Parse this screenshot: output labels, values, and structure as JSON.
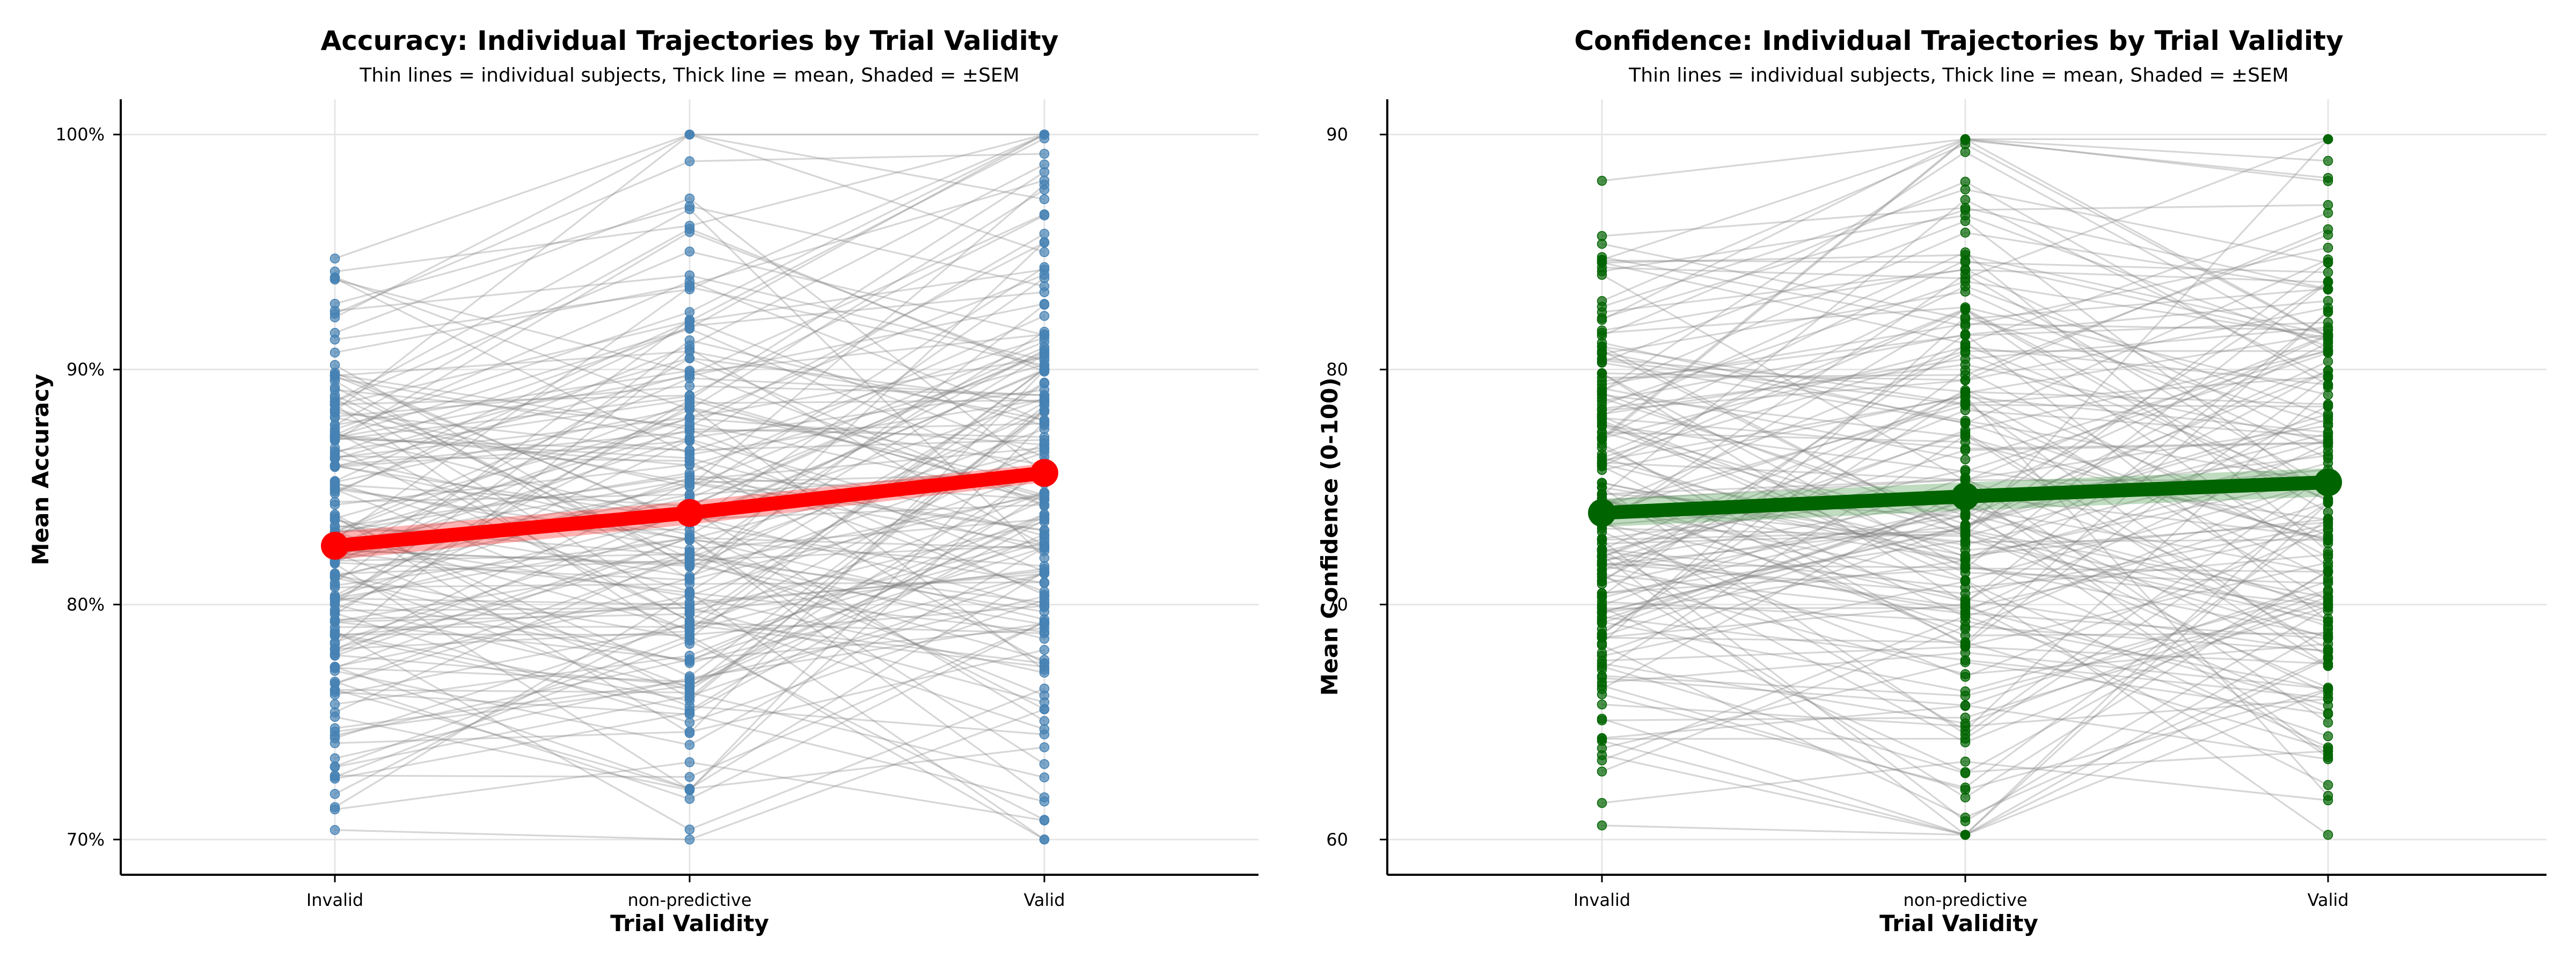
{
  "chart_data": [
    {
      "type": "line",
      "title": "Accuracy: Individual Trajectories by Trial Validity",
      "subtitle": "Thin lines = individual subjects, Thick line = mean, Shaded = ±SEM",
      "xlabel": "Trial Validity",
      "ylabel": "Mean Accuracy",
      "categories": [
        "Invalid",
        "non-predictive",
        "Valid"
      ],
      "ylim": [
        0.685,
        1.015
      ],
      "yticks": [
        0.7,
        0.8,
        0.9,
        1.0
      ],
      "ytick_labels": [
        "70%",
        "80%",
        "90%",
        "100%"
      ],
      "grid": true,
      "mean_series": {
        "values": [
          0.825,
          0.839,
          0.856
        ],
        "sem": [
          0.006,
          0.005,
          0.004
        ]
      },
      "subject_range": [
        0.7,
        1.0
      ],
      "colors": {
        "points": "#4682b4",
        "mean": "#ff0000",
        "sem": "#ff0000",
        "subjects": "#808080"
      }
    },
    {
      "type": "line",
      "title": "Confidence: Individual Trajectories by Trial Validity",
      "subtitle": "Thin lines = individual subjects, Thick line = mean, Shaded = ±SEM",
      "xlabel": "Trial Validity",
      "ylabel": "Mean Confidence (0-100)",
      "categories": [
        "Invalid",
        "non-predictive",
        "Valid"
      ],
      "ylim": [
        58.5,
        91.5
      ],
      "yticks": [
        60,
        70,
        80,
        90
      ],
      "ytick_labels": [
        "60",
        "70",
        "80",
        "90"
      ],
      "grid": true,
      "mean_series": {
        "values": [
          73.9,
          74.6,
          75.2
        ],
        "sem": [
          0.6,
          0.6,
          0.6
        ]
      },
      "subject_range": [
        60.2,
        89.8
      ],
      "colors": {
        "points": "#006400",
        "mean": "#006400",
        "sem": "#2e8b2e",
        "subjects": "#808080"
      }
    }
  ]
}
